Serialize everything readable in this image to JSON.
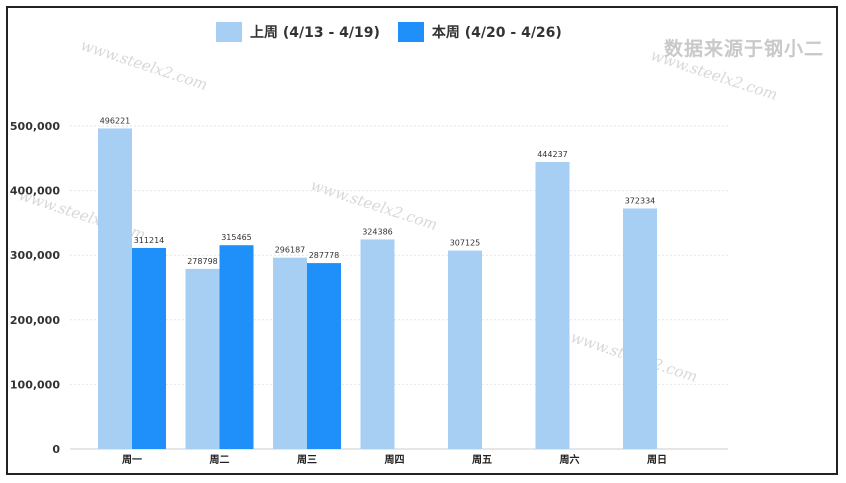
{
  "source_text": "数据来源于钢小二",
  "watermark_text": "www.steelx2.com",
  "colors": {
    "last_week": "#a6cff3",
    "this_week": "#1f8ffa"
  },
  "chart_data": {
    "type": "bar",
    "categories": [
      "周一",
      "周二",
      "周三",
      "周四",
      "周五",
      "周六",
      "周日"
    ],
    "series": [
      {
        "name": "上周 (4/13 - 4/19)",
        "values": [
          496221,
          278798,
          296187,
          324386,
          307125,
          444237,
          372334
        ]
      },
      {
        "name": "本周 (4/20 - 4/26)",
        "values": [
          311214,
          315465,
          287778,
          null,
          null,
          null,
          null
        ]
      }
    ],
    "yticks": [
      "0",
      "100,000",
      "200,000",
      "300,000",
      "400,000",
      "500,000"
    ],
    "ylim": [
      0,
      500000
    ],
    "grid": true,
    "legend_position": "top"
  }
}
